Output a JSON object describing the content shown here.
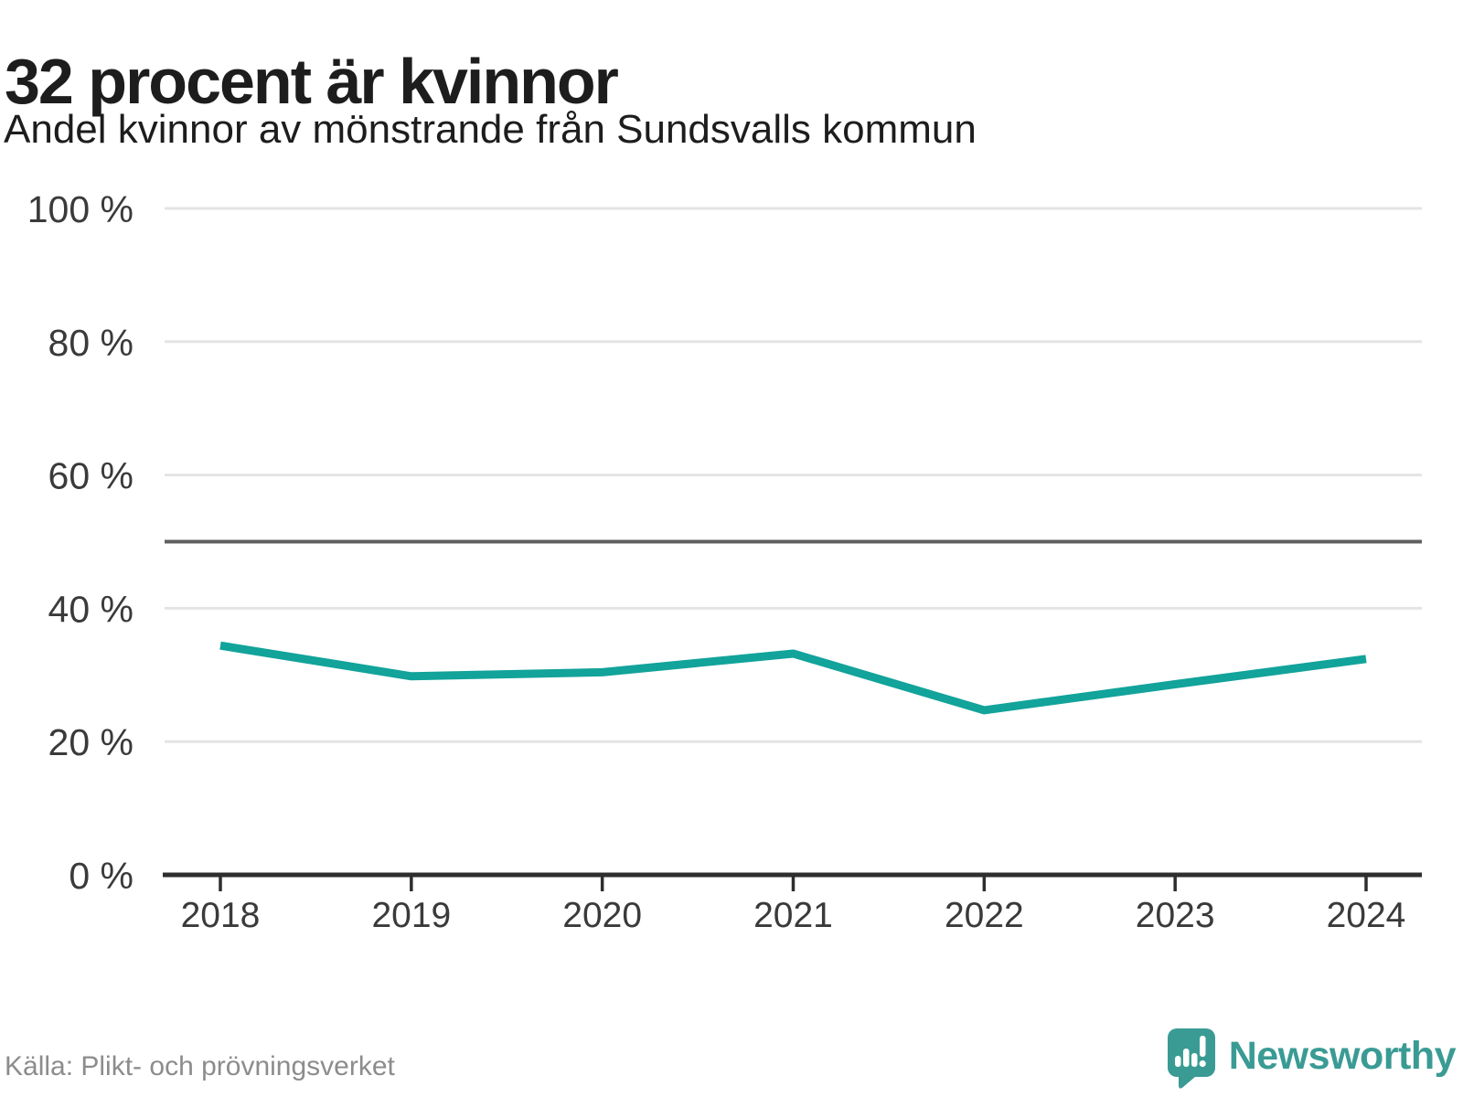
{
  "header": {
    "title": "32 procent är kvinnor",
    "subtitle": "Andel kvinnor av mönstrande från Sundsvalls kommun"
  },
  "chart_data": {
    "type": "line",
    "x": [
      2018,
      2019,
      2020,
      2021,
      2022,
      2023,
      2024
    ],
    "x_labels": [
      "2018",
      "2019",
      "2020",
      "2021",
      "2022",
      "2023",
      "2024"
    ],
    "series": [
      {
        "name": "Andel kvinnor av mönstrande",
        "values": [
          34.4,
          29.8,
          30.4,
          33.2,
          24.7,
          28.6,
          32.4
        ]
      }
    ],
    "title": "32 procent är kvinnor",
    "subtitle": "Andel kvinnor av mönstrande från Sundsvalls kommun",
    "xlabel": "",
    "ylabel": "",
    "ylim": [
      0,
      100
    ],
    "yticks": [
      0,
      20,
      40,
      60,
      80,
      100
    ],
    "ytick_labels": [
      "0 %",
      "20 %",
      "40 %",
      "60 %",
      "80 %",
      "100 %"
    ],
    "reference_line_y": 50,
    "grid": "horizontal",
    "legend": "none"
  },
  "colors": {
    "line": "#12a39a",
    "grid": "#e4e4e4",
    "reference_line": "#5f5f5f",
    "axis": "#2e2e2e",
    "tick_label": "#3a3a3a",
    "title": "#1d1d1d",
    "source": "#8c8c8c",
    "logo": "#3a9b94"
  },
  "footer": {
    "source": "Källa: Plikt- och prövningsverket",
    "logo_text": "Newsworthy"
  }
}
